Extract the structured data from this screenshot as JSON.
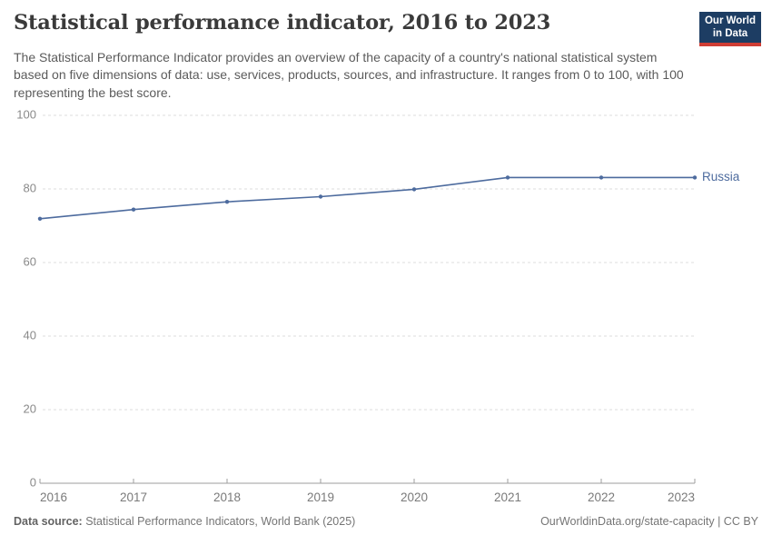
{
  "header": {
    "title": "Statistical performance indicator, 2016 to 2023",
    "subtitle": "The Statistical Performance Indicator provides an overview of the capacity of a country's national statistical system based on five dimensions of data: use, services, products, sources, and infrastructure. It ranges from 0 to 100, with 100 representing the best score.",
    "logo": {
      "line1": "Our World",
      "line2": "in Data",
      "bg_color": "#1d3d63",
      "accent_color": "#cf3d34",
      "text_color": "#ffffff"
    }
  },
  "chart_data": {
    "type": "line",
    "title": "Statistical performance indicator, 2016 to 2023",
    "x": [
      2016,
      2017,
      2018,
      2019,
      2020,
      2021,
      2022,
      2023
    ],
    "series": [
      {
        "name": "Russia",
        "color": "#4d6b9e",
        "values": [
          71.9,
          74.4,
          76.5,
          77.9,
          79.9,
          83.1,
          83.1,
          83.1
        ]
      }
    ],
    "xlabel": "",
    "ylabel": "",
    "ylim": [
      0,
      100
    ],
    "yticks": [
      0,
      20,
      40,
      60,
      80,
      100
    ],
    "xticks": [
      2016,
      2017,
      2018,
      2019,
      2020,
      2021,
      2022,
      2023
    ],
    "grid": "horizontal-dashed",
    "legend_position": "line-end-label",
    "line_end_label": "Russia",
    "colors": {
      "gridline": "#dddddd",
      "axis": "#9e9e9e",
      "tick_label": "#8a8a8a",
      "x_tick_label": "#7a7a7a"
    }
  },
  "footer": {
    "data_source_label": "Data source:",
    "data_source_text": " Statistical Performance Indicators, World Bank (2025)",
    "attribution": "OurWorldinData.org/state-capacity | CC BY"
  }
}
